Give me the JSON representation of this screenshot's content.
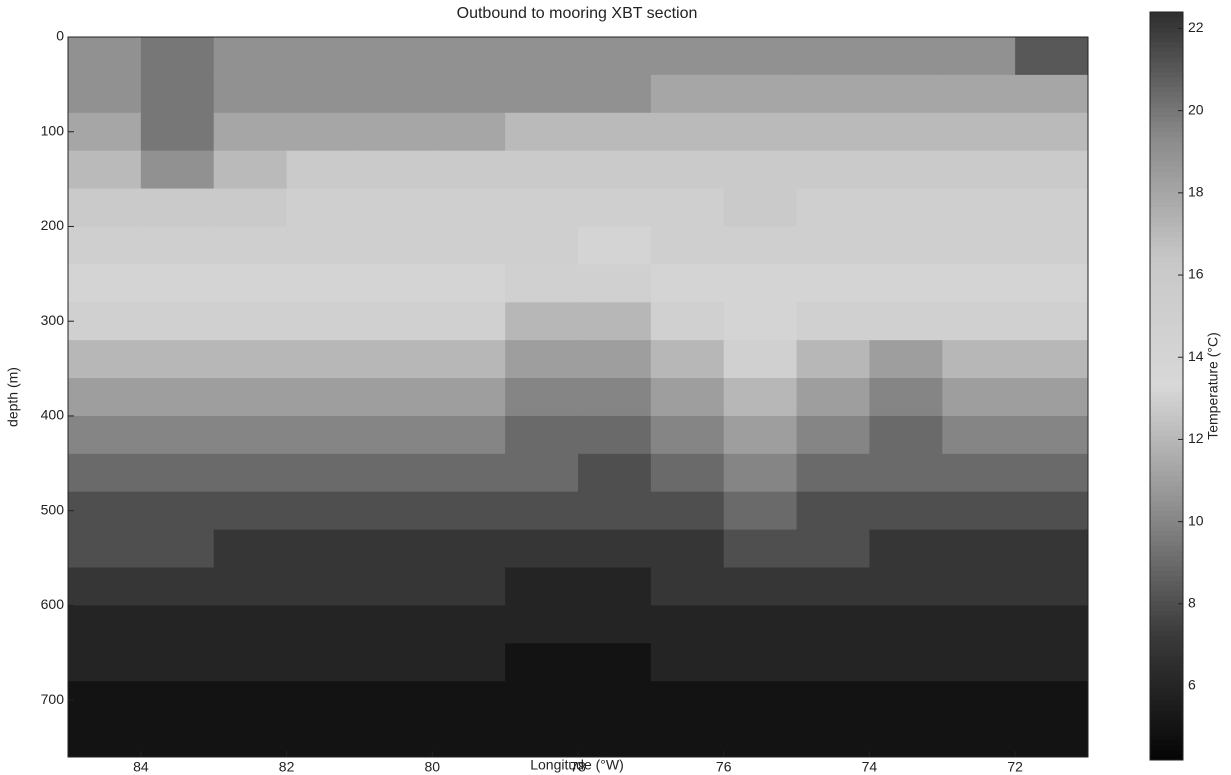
{
  "chart_data": {
    "type": "heatmap",
    "title": "Outbound to mooring XBT section",
    "xlabel": "Longitude (°W)",
    "ylabel": "depth (m)",
    "x": [
      84.5,
      83.5,
      82.5,
      81.5,
      80.5,
      79.5,
      78.5,
      77.5,
      76.5,
      75.5,
      74.5,
      73.5,
      72.5,
      71.5
    ],
    "y": [
      20,
      60,
      100,
      140,
      180,
      220,
      260,
      300,
      340,
      380,
      420,
      460,
      500,
      540,
      580,
      620,
      660,
      700,
      740
    ],
    "values": [
      [
        19,
        20,
        19,
        19,
        19,
        19,
        19,
        19,
        19,
        19,
        19,
        19,
        19,
        21
      ],
      [
        19,
        20,
        19,
        19,
        19,
        19,
        19,
        19,
        18,
        18,
        18,
        18,
        18,
        18
      ],
      [
        18,
        20,
        18,
        18,
        18,
        18,
        17,
        17,
        17,
        17,
        17,
        17,
        17,
        17
      ],
      [
        17,
        19,
        17,
        16,
        16,
        16,
        16,
        16,
        16,
        16,
        16,
        16,
        16,
        16
      ],
      [
        16,
        16,
        16,
        15,
        15,
        15,
        15,
        15,
        15,
        16,
        15,
        15,
        15,
        15
      ],
      [
        15,
        15,
        15,
        15,
        15,
        15,
        15,
        14,
        15,
        15,
        15,
        15,
        15,
        15
      ],
      [
        14,
        14,
        14,
        14,
        14,
        14,
        13,
        13,
        14,
        14,
        14,
        14,
        14,
        14
      ],
      [
        13,
        13,
        13,
        13,
        13,
        13,
        12,
        12,
        13,
        14,
        13,
        13,
        13,
        13
      ],
      [
        12,
        12,
        12,
        12,
        12,
        12,
        11,
        11,
        12,
        13,
        12,
        11,
        12,
        12
      ],
      [
        11,
        11,
        11,
        11,
        11,
        11,
        10,
        10,
        11,
        12,
        11,
        10,
        11,
        11
      ],
      [
        10,
        10,
        10,
        10,
        10,
        10,
        9,
        9,
        10,
        11,
        10,
        9,
        10,
        10
      ],
      [
        9,
        9,
        9,
        9,
        9,
        9,
        9,
        8,
        9,
        10,
        9,
        9,
        9,
        9
      ],
      [
        8,
        8,
        8,
        8,
        8,
        8,
        8,
        8,
        8,
        9,
        8,
        8,
        8,
        8
      ],
      [
        8,
        8,
        7,
        7,
        7,
        7,
        7,
        7,
        7,
        8,
        8,
        7,
        7,
        7
      ],
      [
        7,
        7,
        7,
        7,
        7,
        7,
        6,
        6,
        7,
        7,
        7,
        7,
        7,
        7
      ],
      [
        6,
        6,
        6,
        6,
        6,
        6,
        6,
        6,
        6,
        6,
        6,
        6,
        6,
        6
      ],
      [
        6,
        6,
        6,
        6,
        6,
        6,
        5,
        5,
        6,
        6,
        6,
        6,
        6,
        6
      ],
      [
        5,
        5,
        5,
        5,
        5,
        5,
        5,
        5,
        5,
        5,
        5,
        5,
        5,
        5
      ],
      [
        5,
        5,
        5,
        5,
        5,
        5,
        5,
        5,
        5,
        5,
        5,
        5,
        5,
        5
      ]
    ],
    "xlim": [
      85,
      71
    ],
    "xticks": [
      84,
      82,
      80,
      78,
      76,
      74,
      72
    ],
    "ylim": [
      0,
      760
    ],
    "yticks": [
      0,
      100,
      200,
      300,
      400,
      500,
      600,
      700
    ],
    "colorbar": {
      "label": "Temperature (°C)",
      "clim": [
        4.2,
        22.4
      ],
      "ticks": [
        6,
        8,
        10,
        12,
        14,
        16,
        18,
        20,
        22
      ],
      "colormap": [
        "#050505",
        "#3a3a3a",
        "#8c8c8c",
        "#d8d8d8",
        "#c8c8c8",
        "#8a8a8a",
        "#2e2e2e"
      ]
    }
  }
}
